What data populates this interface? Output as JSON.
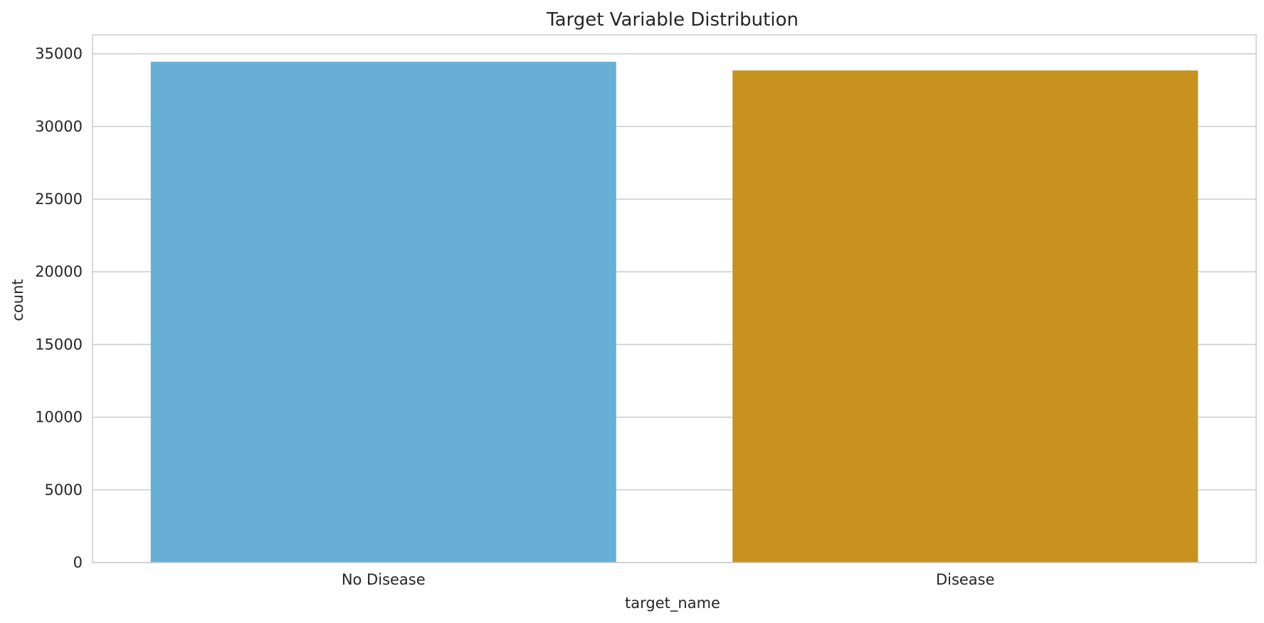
{
  "chart_data": {
    "type": "bar",
    "title": "Target Variable Distribution",
    "xlabel": "target_name",
    "ylabel": "count",
    "categories": [
      "No Disease",
      "Disease"
    ],
    "values": [
      34450,
      33850
    ],
    "colors": [
      "#67afd7",
      "#c8921f"
    ],
    "ylim": [
      0,
      36300
    ],
    "yticks": [
      0,
      5000,
      10000,
      15000,
      20000,
      25000,
      30000,
      35000
    ],
    "ytick_labels": [
      "0",
      "5000",
      "10000",
      "15000",
      "20000",
      "25000",
      "30000",
      "35000"
    ],
    "grid": "horizontal",
    "grid_color": "#cccccc",
    "frame_color": "#cccccc"
  }
}
